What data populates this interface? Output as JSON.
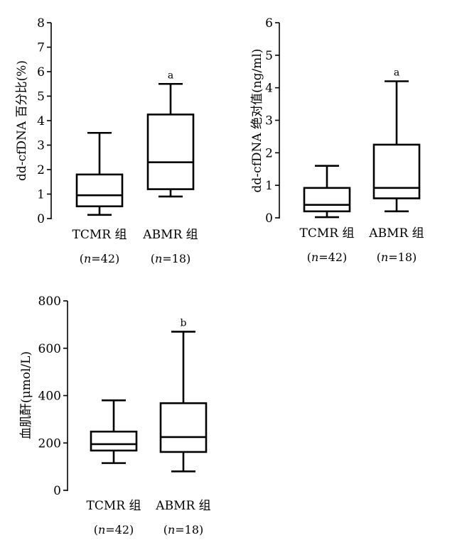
{
  "chart_data": [
    {
      "type": "box",
      "ylabel": "dd-cfDNA 百分比(%)",
      "ylim": [
        0,
        8
      ],
      "yticks": [
        0,
        1,
        2,
        3,
        4,
        5,
        6,
        7,
        8
      ],
      "categories": [
        "TCMR 组",
        "ABMR 组"
      ],
      "n_labels": [
        "(n=42)",
        "(n=18)"
      ],
      "boxes": [
        {
          "min": 0.15,
          "q1": 0.5,
          "median": 0.95,
          "q3": 1.8,
          "max": 3.5,
          "mark": ""
        },
        {
          "min": 0.9,
          "q1": 1.2,
          "median": 2.3,
          "q3": 4.25,
          "max": 5.5,
          "mark": "a"
        }
      ]
    },
    {
      "type": "box",
      "ylabel": "dd-cfDNA 绝对值(ng/ml)",
      "ylim": [
        0,
        6
      ],
      "yticks": [
        0,
        1,
        2,
        3,
        4,
        5,
        6
      ],
      "categories": [
        "TCMR 组",
        "ABMR 组"
      ],
      "n_labels": [
        "(n=42)",
        "(n=18)"
      ],
      "boxes": [
        {
          "min": 0.02,
          "q1": 0.2,
          "median": 0.4,
          "q3": 0.92,
          "max": 1.6,
          "mark": ""
        },
        {
          "min": 0.2,
          "q1": 0.6,
          "median": 0.92,
          "q3": 2.25,
          "max": 4.2,
          "mark": "a"
        }
      ]
    },
    {
      "type": "box",
      "ylabel": "血肌酐(μmol/L)",
      "ylim": [
        0,
        800
      ],
      "yticks": [
        0,
        200,
        400,
        600,
        800
      ],
      "categories": [
        "TCMR 组",
        "ABMR 组"
      ],
      "n_labels": [
        "(n=42)",
        "(n=18)"
      ],
      "boxes": [
        {
          "min": 115,
          "q1": 168,
          "median": 195,
          "q3": 248,
          "max": 380,
          "mark": ""
        },
        {
          "min": 80,
          "q1": 162,
          "median": 225,
          "q3": 368,
          "max": 670,
          "mark": "b"
        }
      ]
    }
  ]
}
